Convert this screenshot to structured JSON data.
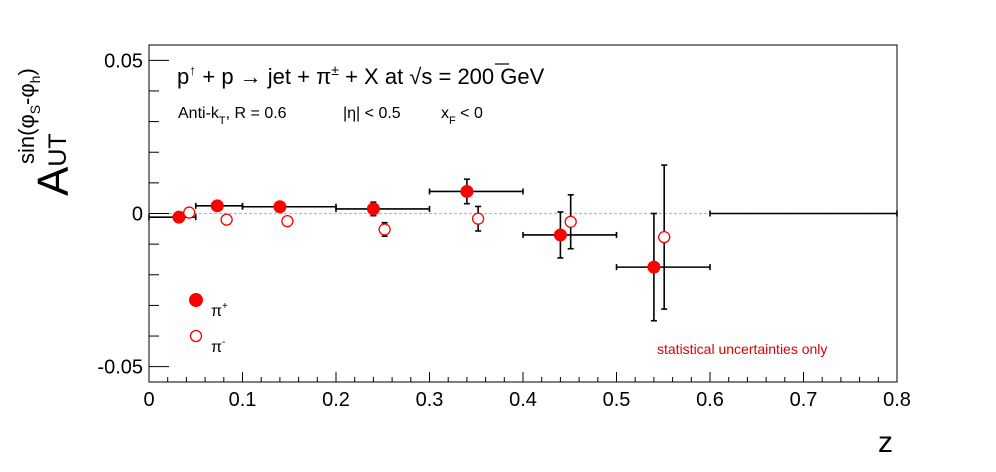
{
  "chart_data": {
    "type": "scatter",
    "title": "p↑ + p → jet + π± + X at √s = 200 GeV",
    "title_parts": {
      "p": "p",
      "arrow_up": "↑",
      "plus1": " + p ",
      "to": "→",
      "jet": " jet + π",
      "pm": "±",
      "x": " + X at ",
      "sqrt": "√",
      "s": "s = 200 GeV"
    },
    "subtitle": "Anti-kT, R = 0.6   |η| < 0.5   xF < 0",
    "subtitle_parts": {
      "antik": "Anti-k",
      "T": "T",
      "r": ", R = 0.6",
      "eta": "|η| < 0.5",
      "xf": "x",
      "F": "F",
      "lt0": " < 0"
    },
    "xlabel": "z",
    "ylabel": {
      "main": "A",
      "sub": "UT",
      "sup_sin": "sin(φ",
      "sup_s": "S",
      "sup_mid": "-φ",
      "sup_h": "h",
      "sup_close": ")"
    },
    "xlim": [
      0,
      0.8
    ],
    "ylim": [
      -0.055,
      0.055
    ],
    "x_ticks": [
      {
        "value": 0,
        "label": "0"
      },
      {
        "value": 0.1,
        "label": "0.1"
      },
      {
        "value": 0.2,
        "label": "0.2"
      },
      {
        "value": 0.3,
        "label": "0.3"
      },
      {
        "value": 0.4,
        "label": "0.4"
      },
      {
        "value": 0.5,
        "label": "0.5"
      },
      {
        "value": 0.6,
        "label": "0.6"
      },
      {
        "value": 0.7,
        "label": "0.7"
      },
      {
        "value": 0.8,
        "label": "0.8"
      }
    ],
    "y_ticks": [
      {
        "value": 0.05,
        "label": "0.05"
      },
      {
        "value": 0,
        "label": "0"
      },
      {
        "value": -0.05,
        "label": "-0.05"
      }
    ],
    "zero_line": true,
    "legend": {
      "placement": "bottom-left",
      "entries": [
        {
          "name": "π",
          "charge": "+",
          "marker": "filled-circle"
        },
        {
          "name": "π",
          "charge": "-",
          "marker": "open-circle"
        }
      ]
    },
    "annotation": "statistical uncertainties only",
    "colors": {
      "marker": "#ff0000",
      "annotation": "#e00000",
      "errorbar": "#000000",
      "zero_line": "#bbbbbb"
    },
    "series": [
      {
        "name": "π+",
        "marker": "filled",
        "points": [
          {
            "x": 0.032,
            "y": -0.0012,
            "xerr_lo": 0.032,
            "xerr_hi": 0.018,
            "yerr": 0.001
          },
          {
            "x": 0.073,
            "y": 0.0025,
            "xerr_lo": 0.023,
            "xerr_hi": 0.027,
            "yerr": 0.001
          },
          {
            "x": 0.14,
            "y": 0.0022,
            "xerr_lo": 0.04,
            "xerr_hi": 0.06,
            "yerr": 0.0012
          },
          {
            "x": 0.24,
            "y": 0.0015,
            "xerr_lo": 0.04,
            "xerr_hi": 0.06,
            "yerr": 0.0022
          },
          {
            "x": 0.34,
            "y": 0.0072,
            "xerr_lo": 0.04,
            "xerr_hi": 0.06,
            "yerr": 0.004
          },
          {
            "x": 0.44,
            "y": -0.007,
            "xerr_lo": 0.04,
            "xerr_hi": 0.06,
            "yerr": 0.0075
          },
          {
            "x": 0.54,
            "y": -0.0175,
            "xerr_lo": 0.04,
            "xerr_hi": 0.06,
            "yerr": 0.0175
          },
          {
            "x": 0.7,
            "y": 0.0,
            "xerr_lo": 0.1,
            "xerr_hi": 0.1,
            "yerr": 0.0,
            "no_marker": true
          }
        ]
      },
      {
        "name": "π-",
        "marker": "open",
        "points": [
          {
            "x": 0.043,
            "y": 0.0003,
            "yerr": 0.001
          },
          {
            "x": 0.083,
            "y": -0.002,
            "yerr": 0.001
          },
          {
            "x": 0.148,
            "y": -0.0025,
            "yerr": 0.0012
          },
          {
            "x": 0.252,
            "y": -0.0052,
            "yerr": 0.0022
          },
          {
            "x": 0.352,
            "y": -0.0017,
            "yerr": 0.004
          },
          {
            "x": 0.451,
            "y": -0.0027,
            "yerr": 0.0088
          },
          {
            "x": 0.551,
            "y": -0.0077,
            "yerr": 0.0235
          }
        ]
      }
    ]
  }
}
